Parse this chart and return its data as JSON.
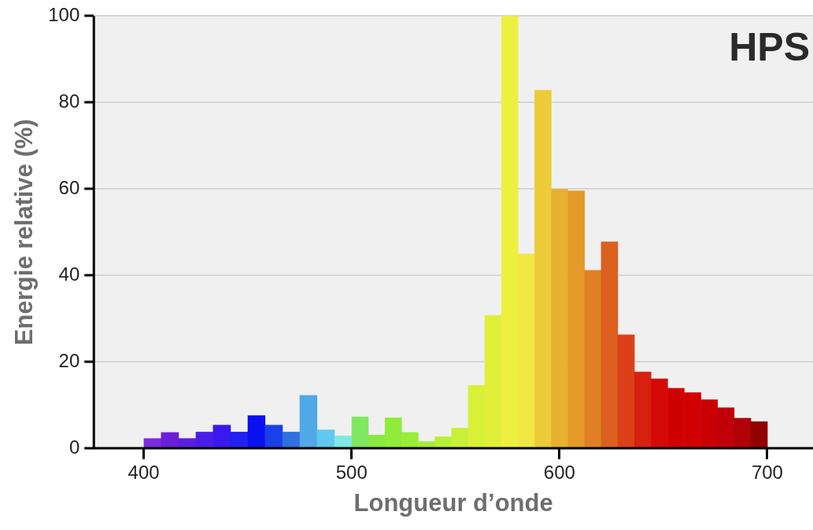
{
  "chart_data": {
    "type": "histogram",
    "title": "HPS",
    "xlabel": "Longueur d’onde",
    "ylabel": "Energie relative (%)",
    "bins": [
      400,
      408.3,
      416.7,
      425,
      433.3,
      441.7,
      450,
      458.3,
      466.7,
      475,
      483.3,
      491.7,
      500,
      508,
      516,
      524,
      532,
      540,
      548,
      556,
      564,
      572,
      580,
      588,
      596,
      604,
      612,
      620,
      628,
      636,
      644,
      652,
      660,
      668,
      676,
      684,
      692,
      700
    ],
    "values": [
      2.3,
      3.7,
      2.3,
      3.8,
      5.4,
      3.8,
      7.6,
      5.4,
      3.8,
      12.3,
      4.3,
      2.9,
      7.3,
      3.1,
      7.1,
      3.7,
      1.6,
      2.7,
      4.7,
      14.6,
      30.8,
      100,
      45,
      82.9,
      60,
      59.6,
      41.2,
      47.8,
      26.3,
      17.7,
      16.1,
      13.9,
      12.9,
      11.3,
      9.4,
      7,
      6.2
    ],
    "colors": [
      "#7a2be0",
      "#6a20d8",
      "#5a1ee0",
      "#4a1ee8",
      "#3a18f0",
      "#2020f0",
      "#0a10f0",
      "#1a40e8",
      "#3070e0",
      "#50a8e8",
      "#60c8f0",
      "#80e8e0",
      "#80e860",
      "#88ea40",
      "#90ec38",
      "#98ee38",
      "#a8ee38",
      "#b8f038",
      "#c8f038",
      "#d8f038",
      "#e0f038",
      "#eef040",
      "#f0e840",
      "#eccc38",
      "#e8b030",
      "#e49a28",
      "#e08024",
      "#dc6020",
      "#dc4018",
      "#d82010",
      "#d40a08",
      "#d00000",
      "#d00000",
      "#c80004",
      "#c00008",
      "#b00008",
      "#900000"
    ],
    "xlim": [
      376,
      722
    ],
    "ylim": [
      0,
      100
    ],
    "xticks": [
      400,
      500,
      600,
      700
    ],
    "yticks": [
      0,
      20,
      40,
      60,
      80,
      100
    ],
    "grid": "y"
  }
}
